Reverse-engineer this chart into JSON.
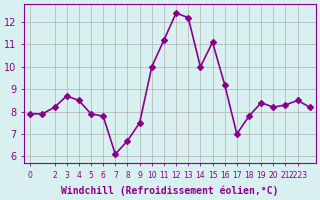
{
  "x": [
    0,
    1,
    2,
    3,
    4,
    5,
    6,
    7,
    8,
    9,
    10,
    11,
    12,
    13,
    14,
    15,
    16,
    17,
    18,
    19,
    20,
    21,
    22,
    23
  ],
  "y": [
    7.9,
    7.9,
    8.2,
    8.7,
    8.5,
    7.9,
    7.8,
    6.1,
    6.7,
    7.5,
    10.0,
    11.2,
    12.4,
    12.2,
    10.0,
    11.1,
    9.2,
    7.0,
    7.8,
    8.4,
    8.2,
    8.3,
    8.5,
    8.2
  ],
  "line_color": "#8b008b",
  "marker": "D",
  "marker_size": 3,
  "line_width": 1.2,
  "bg_color": "#d8f0f0",
  "grid_color": "#b0b0b0",
  "ylabel_ticks": [
    6,
    7,
    8,
    9,
    10,
    11,
    12
  ],
  "xtick_positions": [
    0,
    2,
    3,
    4,
    5,
    6,
    7,
    8,
    9,
    10,
    11,
    12,
    13,
    14,
    15,
    16,
    17,
    18,
    19,
    20,
    21,
    22
  ],
  "xtick_labels": [
    "0",
    "2",
    "3",
    "4",
    "5",
    "6",
    "7",
    "8",
    "9",
    "10",
    "11",
    "12",
    "13",
    "14",
    "15",
    "16",
    "17",
    "18",
    "19",
    "20",
    "21",
    "2223"
  ],
  "xlabel": "Windchill (Refroidissement éolien,°C)",
  "xlim": [
    -0.5,
    23.5
  ],
  "ylim": [
    5.7,
    12.8
  ],
  "tick_color": "#8b008b",
  "label_color": "#8b008b"
}
